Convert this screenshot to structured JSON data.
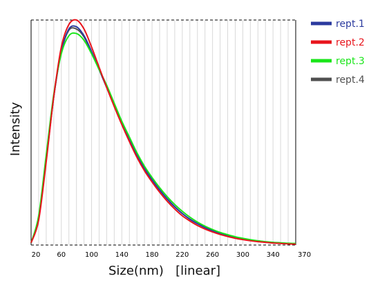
{
  "chart_data": {
    "type": "line",
    "xlabel": "Size(nm)   [linear]",
    "ylabel": "Intensity",
    "xlim": [
      20,
      370
    ],
    "ylim": [
      0,
      1
    ],
    "x_ticks": [
      20,
      60,
      100,
      140,
      180,
      220,
      260,
      300,
      340,
      370
    ],
    "grid": "vertical",
    "legend_position": "right",
    "x": [
      20,
      30,
      40,
      50,
      60,
      70,
      80,
      90,
      100,
      110,
      120,
      130,
      140,
      150,
      160,
      170,
      180,
      190,
      200,
      210,
      220,
      230,
      240,
      250,
      260,
      270,
      280,
      290,
      300,
      310,
      320,
      330,
      340,
      350,
      360,
      370
    ],
    "series": [
      {
        "name": "rept.1",
        "color": "#2b3a9e",
        "values": [
          0.01,
          0.12,
          0.38,
          0.66,
          0.86,
          0.96,
          0.97,
          0.93,
          0.86,
          0.78,
          0.7,
          0.62,
          0.54,
          0.47,
          0.4,
          0.34,
          0.29,
          0.245,
          0.205,
          0.17,
          0.14,
          0.115,
          0.095,
          0.078,
          0.064,
          0.052,
          0.042,
          0.034,
          0.027,
          0.022,
          0.018,
          0.014,
          0.011,
          0.009,
          0.007,
          0.006
        ]
      },
      {
        "name": "rept.2",
        "color": "#e8141c",
        "values": [
          0.01,
          0.11,
          0.37,
          0.66,
          0.88,
          0.98,
          1.0,
          0.96,
          0.88,
          0.79,
          0.7,
          0.615,
          0.535,
          0.46,
          0.39,
          0.33,
          0.28,
          0.235,
          0.195,
          0.16,
          0.13,
          0.107,
          0.087,
          0.071,
          0.058,
          0.047,
          0.038,
          0.03,
          0.024,
          0.019,
          0.015,
          0.012,
          0.009,
          0.007,
          0.005,
          0.004
        ]
      },
      {
        "name": "rept.3",
        "color": "#19e619",
        "values": [
          0.01,
          0.13,
          0.4,
          0.67,
          0.85,
          0.93,
          0.94,
          0.91,
          0.85,
          0.78,
          0.71,
          0.63,
          0.55,
          0.48,
          0.41,
          0.35,
          0.3,
          0.255,
          0.215,
          0.18,
          0.15,
          0.124,
          0.102,
          0.084,
          0.069,
          0.056,
          0.046,
          0.037,
          0.03,
          0.024,
          0.019,
          0.015,
          0.012,
          0.01,
          0.008,
          0.007
        ]
      },
      {
        "name": "rept.4",
        "color": "#505050",
        "values": [
          0.01,
          0.12,
          0.38,
          0.66,
          0.86,
          0.955,
          0.96,
          0.925,
          0.855,
          0.78,
          0.7,
          0.62,
          0.54,
          0.47,
          0.4,
          0.34,
          0.29,
          0.245,
          0.205,
          0.17,
          0.14,
          0.115,
          0.095,
          0.078,
          0.064,
          0.052,
          0.042,
          0.034,
          0.027,
          0.022,
          0.018,
          0.014,
          0.011,
          0.009,
          0.007,
          0.006
        ]
      }
    ]
  }
}
